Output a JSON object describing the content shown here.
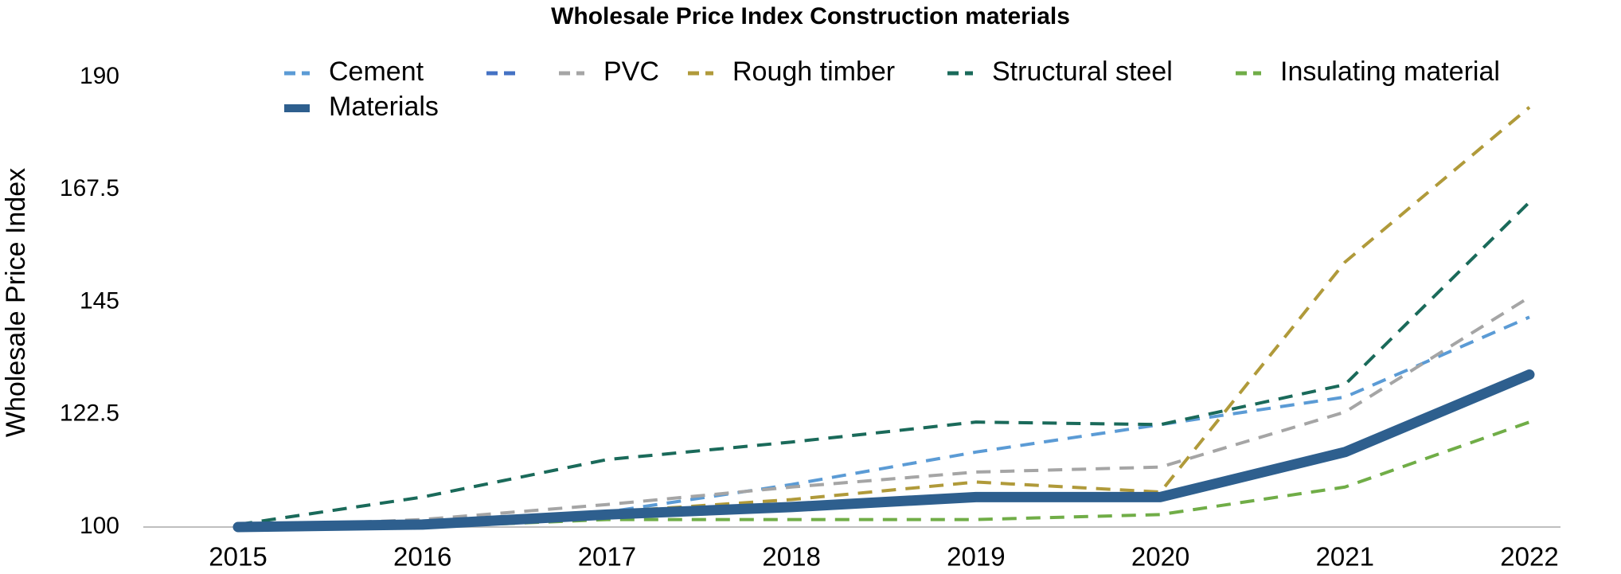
{
  "chart_data": {
    "type": "line",
    "title": "Wholesale Price Index Construction materials",
    "y_label": "Wholesale Price Index",
    "categories": [
      "2015",
      "2016",
      "2017",
      "2018",
      "2019",
      "2020",
      "2021",
      "2022"
    ],
    "ylim": [
      100,
      190
    ],
    "yticks": [
      100,
      122.5,
      145,
      167.5,
      190
    ],
    "grid": false,
    "legend": "top",
    "series": [
      {
        "name": "Cement",
        "color": "#5b9bd5",
        "dashed": true,
        "values": [
          100,
          100,
          103,
          108.5,
          115,
          120.5,
          126,
          142
        ]
      },
      {
        "name": "PVC",
        "color": "#a5a5a5",
        "dashed": true,
        "values": [
          100,
          101.5,
          104.5,
          108,
          111,
          112,
          123,
          146
        ]
      },
      {
        "name": "Rough timber",
        "color": "#b09a3a",
        "dashed": true,
        "values": [
          100,
          100.5,
          103,
          105.5,
          109,
          107,
          153,
          184
        ]
      },
      {
        "name": "Structural steel",
        "color": "#1a6a5a",
        "dashed": true,
        "values": [
          100.5,
          106,
          113.5,
          117,
          121,
          120.5,
          128.5,
          165
        ]
      },
      {
        "name": "Insulating material",
        "color": "#70ad47",
        "dashed": true,
        "values": [
          100,
          100,
          101.5,
          101.5,
          101.5,
          102.5,
          108,
          121
        ]
      },
      {
        "name": "Materials",
        "color": "#2e5f8e",
        "dashed": false,
        "values": [
          100,
          100.5,
          102.5,
          104,
          106,
          106,
          115,
          130.5
        ]
      }
    ]
  }
}
